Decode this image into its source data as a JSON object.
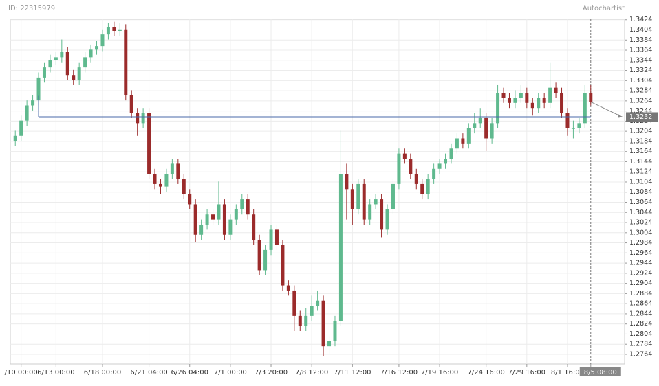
{
  "header": {
    "id": "ID: 22315979",
    "brand": "Autochartist"
  },
  "chart_data": {
    "type": "candlestick",
    "categories": [
      null,
      "/10 00:00",
      null,
      null,
      null,
      null,
      null,
      "6/13 00:00",
      null,
      null,
      null,
      null,
      null,
      null,
      null,
      "6/18 00:00",
      null,
      null,
      null,
      null,
      null,
      null,
      null,
      "6/21 04:00",
      null,
      null,
      null,
      null,
      null,
      null,
      "6/26 04:00",
      null,
      null,
      null,
      null,
      null,
      null,
      "7/1 00:00",
      null,
      null,
      null,
      null,
      null,
      null,
      "7/3 20:00",
      null,
      null,
      null,
      null,
      null,
      null,
      "7/8 12:00",
      null,
      null,
      null,
      null,
      null,
      null,
      "7/11 12:00",
      null,
      null,
      null,
      null,
      null,
      null,
      null,
      "7/16 12:00",
      null,
      null,
      null,
      null,
      null,
      null,
      "7/19 16:00",
      null,
      null,
      null,
      null,
      null,
      null,
      null,
      "7/24 16:00",
      null,
      null,
      null,
      null,
      null,
      null,
      "7/29 16:00",
      null,
      null,
      null,
      null,
      null,
      null,
      "8/1 16:00",
      null,
      null,
      null,
      "8/5 08:00"
    ],
    "open": [
      1.3185,
      1.3195,
      1.3225,
      1.3255,
      1.3265,
      1.331,
      1.333,
      1.3345,
      1.335,
      1.336,
      1.3315,
      1.3305,
      1.333,
      1.335,
      1.3365,
      1.3372,
      1.3395,
      1.341,
      1.3402,
      1.3405,
      1.3275,
      1.324,
      1.322,
      1.324,
      1.312,
      1.31,
      1.3095,
      1.312,
      1.314,
      1.311,
      1.308,
      1.306,
      1.3,
      1.302,
      1.304,
      1.303,
      1.306,
      1.3,
      1.303,
      1.305,
      1.307,
      1.304,
      1.299,
      1.293,
      1.297,
      1.301,
      1.298,
      1.29,
      1.289,
      1.284,
      1.282,
      1.284,
      1.286,
      1.287,
      1.278,
      1.279,
      1.283,
      1.312,
      1.309,
      1.305,
      1.31,
      1.303,
      1.306,
      1.307,
      1.301,
      1.305,
      1.31,
      1.316,
      1.315,
      1.312,
      1.31,
      1.308,
      1.311,
      1.313,
      1.314,
      1.315,
      1.317,
      1.319,
      1.318,
      1.321,
      1.322,
      1.323,
      1.319,
      1.322,
      1.328,
      1.327,
      1.326,
      1.327,
      1.328,
      1.326,
      1.325,
      1.327,
      1.326,
      1.329,
      1.328,
      1.324,
      1.321,
      1.321,
      1.322,
      1.328
    ],
    "high": [
      1.3205,
      1.3235,
      1.3265,
      1.3275,
      1.332,
      1.334,
      1.3355,
      1.336,
      1.3385,
      1.337,
      1.3325,
      1.334,
      1.336,
      1.3375,
      1.3382,
      1.3405,
      1.3418,
      1.342,
      1.3418,
      1.3415,
      1.3285,
      1.325,
      1.325,
      1.325,
      1.313,
      1.311,
      1.313,
      1.315,
      1.315,
      1.312,
      1.309,
      1.307,
      1.303,
      1.305,
      1.305,
      1.3105,
      1.307,
      1.304,
      1.306,
      1.308,
      1.308,
      1.305,
      1.3,
      1.298,
      1.302,
      1.302,
      1.299,
      1.291,
      1.29,
      1.285,
      1.2855,
      1.288,
      1.289,
      1.288,
      1.28,
      1.284,
      1.3205,
      1.314,
      1.31,
      1.311,
      1.311,
      1.307,
      1.308,
      1.308,
      1.306,
      1.311,
      1.317,
      1.317,
      1.316,
      1.313,
      1.311,
      1.312,
      1.314,
      1.315,
      1.316,
      1.318,
      1.32,
      1.32,
      1.322,
      1.324,
      1.325,
      1.324,
      1.323,
      1.3295,
      1.329,
      1.328,
      1.3285,
      1.3295,
      1.329,
      1.327,
      1.328,
      1.328,
      1.334,
      1.33,
      1.329,
      1.325,
      1.3225,
      1.323,
      1.3295,
      1.3295
    ],
    "low": [
      1.3175,
      1.3185,
      1.3215,
      1.3245,
      1.3255,
      1.33,
      1.332,
      1.3335,
      1.334,
      1.3305,
      1.3295,
      1.3295,
      1.332,
      1.334,
      1.3355,
      1.3362,
      1.3385,
      1.3392,
      1.3392,
      1.3265,
      1.323,
      1.3195,
      1.321,
      1.311,
      1.309,
      1.308,
      1.3085,
      1.311,
      1.31,
      1.307,
      1.305,
      1.2985,
      1.299,
      1.301,
      1.302,
      1.302,
      1.299,
      1.299,
      1.302,
      1.304,
      1.303,
      1.298,
      1.292,
      1.292,
      1.296,
      1.297,
      1.289,
      1.288,
      1.281,
      1.281,
      1.281,
      1.283,
      1.285,
      1.276,
      1.2765,
      1.278,
      1.282,
      1.303,
      1.302,
      1.304,
      1.302,
      1.302,
      1.305,
      1.2995,
      1.3,
      1.304,
      1.309,
      1.314,
      1.311,
      1.309,
      1.307,
      1.307,
      1.31,
      1.312,
      1.313,
      1.314,
      1.316,
      1.317,
      1.317,
      1.32,
      1.321,
      1.3165,
      1.318,
      1.321,
      1.326,
      1.325,
      1.325,
      1.326,
      1.325,
      1.3235,
      1.324,
      1.325,
      1.325,
      1.327,
      1.323,
      1.3195,
      1.319,
      1.32,
      1.321,
      1.3255
    ],
    "close": [
      1.3195,
      1.3225,
      1.3255,
      1.3265,
      1.331,
      1.333,
      1.3345,
      1.335,
      1.336,
      1.3315,
      1.3305,
      1.333,
      1.335,
      1.3365,
      1.3372,
      1.3395,
      1.341,
      1.3402,
      1.3405,
      1.3275,
      1.324,
      1.322,
      1.324,
      1.312,
      1.31,
      1.3095,
      1.312,
      1.314,
      1.311,
      1.308,
      1.306,
      1.3,
      1.302,
      1.304,
      1.303,
      1.306,
      1.3,
      1.303,
      1.305,
      1.307,
      1.304,
      1.299,
      1.293,
      1.297,
      1.301,
      1.298,
      1.29,
      1.289,
      1.284,
      1.282,
      1.284,
      1.286,
      1.287,
      1.278,
      1.279,
      1.283,
      1.312,
      1.309,
      1.305,
      1.31,
      1.303,
      1.306,
      1.307,
      1.301,
      1.305,
      1.31,
      1.316,
      1.315,
      1.312,
      1.31,
      1.308,
      1.311,
      1.313,
      1.314,
      1.315,
      1.317,
      1.319,
      1.318,
      1.321,
      1.322,
      1.323,
      1.319,
      1.322,
      1.328,
      1.327,
      1.326,
      1.327,
      1.328,
      1.326,
      1.325,
      1.327,
      1.326,
      1.329,
      1.328,
      1.324,
      1.321,
      1.321,
      1.322,
      1.328,
      1.3262
    ],
    "up_color": "#5fb98e",
    "down_color": "#9b2b2b",
    "target_level": 1.3232,
    "target_color": "#4a6aa8",
    "ylim": [
      1.2745,
      1.3425
    ],
    "yticks": [
      1.2764,
      1.2784,
      1.2804,
      1.2824,
      1.2844,
      1.2864,
      1.2884,
      1.2904,
      1.2924,
      1.2944,
      1.2964,
      1.2984,
      1.3004,
      1.3024,
      1.3044,
      1.3064,
      1.3084,
      1.3104,
      1.3124,
      1.3144,
      1.3164,
      1.3184,
      1.3204,
      1.3224,
      1.3244,
      1.3264,
      1.3284,
      1.3304,
      1.3324,
      1.3344,
      1.3364,
      1.3384,
      1.3404,
      1.3424
    ],
    "grid": true
  }
}
